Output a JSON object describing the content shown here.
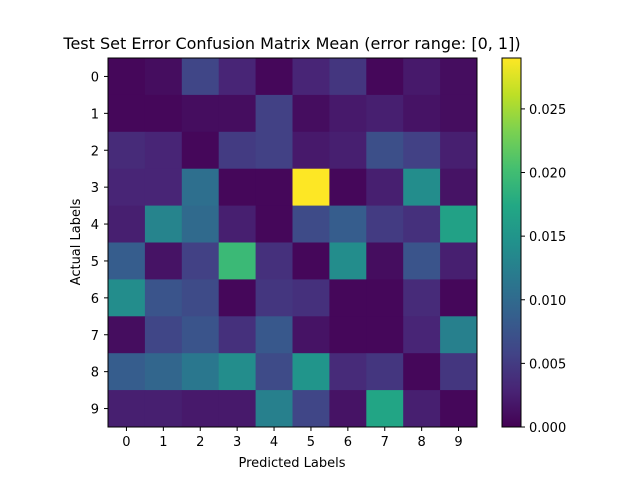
{
  "chart_data": {
    "type": "heatmap",
    "title": "Test Set Error Confusion Matrix Mean (error range: [0, 1])",
    "xlabel": "Predicted Labels",
    "ylabel": "Actual Labels",
    "x_categories": [
      "0",
      "1",
      "2",
      "3",
      "4",
      "5",
      "6",
      "7",
      "8",
      "9"
    ],
    "y_categories": [
      "0",
      "1",
      "2",
      "3",
      "4",
      "5",
      "6",
      "7",
      "8",
      "9"
    ],
    "colormap": "viridis",
    "vmin": 0.0,
    "vmax": 0.029,
    "colorbar_ticks": [
      "0.000",
      "0.005",
      "0.010",
      "0.015",
      "0.020",
      "0.025"
    ],
    "colorbar_tick_values": [
      0.0,
      0.005,
      0.01,
      0.015,
      0.02,
      0.025
    ],
    "matrix": [
      [
        0.0005,
        0.001,
        0.006,
        0.003,
        0.0005,
        0.003,
        0.0045,
        0.0005,
        0.002,
        0.001
      ],
      [
        0.0005,
        0.0005,
        0.001,
        0.001,
        0.0055,
        0.001,
        0.002,
        0.0025,
        0.0015,
        0.001
      ],
      [
        0.0035,
        0.003,
        0.0005,
        0.005,
        0.0055,
        0.002,
        0.0025,
        0.007,
        0.0055,
        0.0025
      ],
      [
        0.003,
        0.003,
        0.0105,
        0.0005,
        0.0005,
        0.029,
        0.0005,
        0.0025,
        0.014,
        0.0015
      ],
      [
        0.0025,
        0.013,
        0.01,
        0.0025,
        0.0005,
        0.0065,
        0.0085,
        0.005,
        0.004,
        0.0165
      ],
      [
        0.0085,
        0.0015,
        0.0055,
        0.0195,
        0.004,
        0.0005,
        0.014,
        0.001,
        0.0075,
        0.0025
      ],
      [
        0.014,
        0.0075,
        0.0065,
        0.0005,
        0.0045,
        0.004,
        0.0005,
        0.0005,
        0.0035,
        0.0005
      ],
      [
        0.001,
        0.006,
        0.0075,
        0.004,
        0.008,
        0.0015,
        0.0005,
        0.0005,
        0.003,
        0.0125
      ],
      [
        0.0085,
        0.0095,
        0.0115,
        0.014,
        0.0065,
        0.015,
        0.0035,
        0.0045,
        0.0005,
        0.0045
      ],
      [
        0.0025,
        0.0025,
        0.002,
        0.002,
        0.0125,
        0.006,
        0.0015,
        0.017,
        0.0025,
        0.0005
      ]
    ]
  }
}
